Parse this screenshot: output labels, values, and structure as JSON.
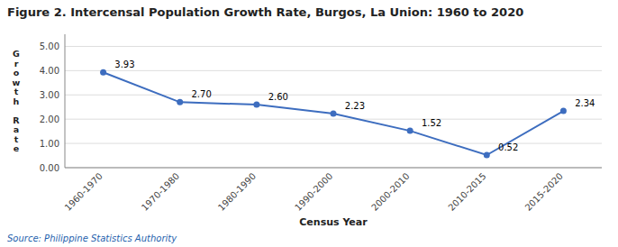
{
  "chart_data": {
    "type": "line",
    "title": "Figure 2. Intercensal Population Growth Rate, Burgos, La Union: 1960 to 2020",
    "categories": [
      "1960-1970",
      "1970-1980",
      "1980-1990",
      "1990-2000",
      "2000-2010",
      "2010-2015",
      "2015-2020"
    ],
    "values": [
      3.93,
      2.7,
      2.6,
      2.23,
      1.52,
      0.52,
      2.34
    ],
    "value_labels": [
      "3.93",
      "2.70",
      "2.60",
      "2.23",
      "1.52",
      "0.52",
      "2.34"
    ],
    "data_labels": true,
    "x_label": "Census Year",
    "y_label": "G\nr\no\nw\nt\nh\n\nR\na\nt\ne",
    "ylim": [
      0,
      5.5
    ],
    "yticks": [
      {
        "value": 0,
        "label": "0.00"
      },
      {
        "value": 1,
        "label": "1.00"
      },
      {
        "value": 2,
        "label": "2.00"
      },
      {
        "value": 3,
        "label": "3.00"
      },
      {
        "value": 4,
        "label": "4.00"
      },
      {
        "value": 5,
        "label": "5.00"
      }
    ],
    "color": "#3D6DBF",
    "marker": "circle",
    "grid": true,
    "annotations": [
      "Source: Philippine Statistics Authority"
    ]
  }
}
